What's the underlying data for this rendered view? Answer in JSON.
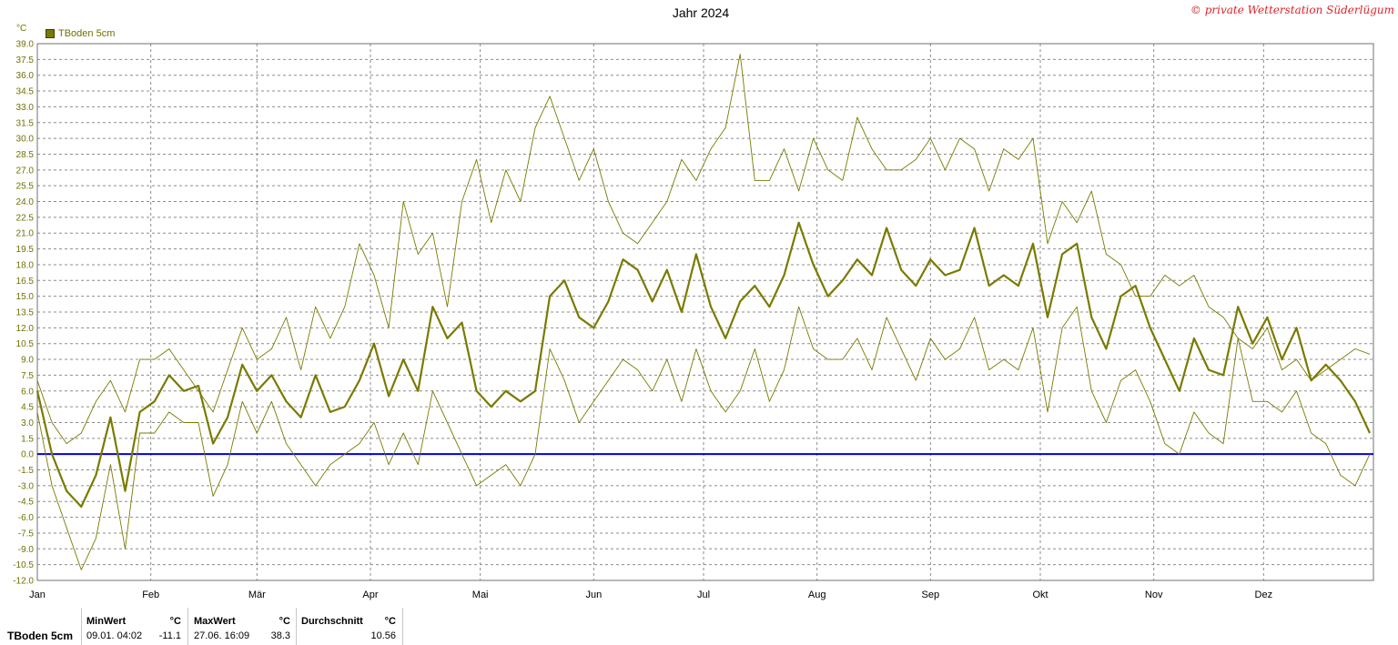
{
  "header": {
    "title": "Jahr 2024",
    "copyright": "© private Wetterstation Süderlügum",
    "unit": "°C"
  },
  "legend": {
    "label": "TBoden  5cm"
  },
  "colors": {
    "series": "#7a7a00",
    "zero_line": "#0000dd",
    "grid": "#8c8c8c"
  },
  "stats": {
    "series_name": "TBoden  5cm",
    "min_header": "MinWert",
    "min_unit": "°C",
    "min_time": "09.01.  04:02",
    "min_value": "-11.1",
    "max_header": "MaxWert",
    "max_unit": "°C",
    "max_time": "27.06.  16:09",
    "max_value": "38.3",
    "avg_header": "Durchschnitt",
    "avg_unit": "°C",
    "avg_value": "10.56"
  },
  "chart_data": {
    "type": "line",
    "title": "Jahr 2024",
    "xlabel": "",
    "ylabel": "°C",
    "ylim": [
      -12,
      39
    ],
    "y_ticks": [
      "39.0",
      "37.5",
      "36.0",
      "34.5",
      "33.0",
      "31.5",
      "30.0",
      "28.5",
      "27.0",
      "25.5",
      "24.0",
      "22.5",
      "21.0",
      "19.5",
      "18.0",
      "16.5",
      "15.0",
      "13.5",
      "12.0",
      "10.5",
      "9.0",
      "7.5",
      "6.0",
      "4.5",
      "3.0",
      "1.5",
      "0.0",
      "-1.5",
      "-3.0",
      "-4.5",
      "-6.0",
      "-7.5",
      "-9.0",
      "-10.5",
      "-12.0"
    ],
    "x_tick_labels": [
      "Jan",
      "Feb",
      "Mär",
      "Apr",
      "Mai",
      "Jun",
      "Jul",
      "Aug",
      "Sep",
      "Okt",
      "Nov",
      "Dez"
    ],
    "x_unit": "day of year 2024 (1 = 1 Jan)",
    "xlim": [
      1,
      366
    ],
    "month_start_days": [
      1,
      32,
      61,
      92,
      122,
      153,
      183,
      214,
      245,
      275,
      306,
      336
    ],
    "grid": true,
    "zero_line": 0,
    "legend_position": "top-left",
    "series": [
      {
        "name": "TBoden  5cm",
        "role": "mean",
        "x": [
          1,
          5,
          9,
          13,
          17,
          21,
          25,
          29,
          33,
          37,
          41,
          45,
          49,
          53,
          57,
          61,
          65,
          69,
          73,
          77,
          81,
          85,
          89,
          93,
          97,
          101,
          105,
          109,
          113,
          117,
          121,
          125,
          129,
          133,
          137,
          141,
          145,
          149,
          153,
          157,
          161,
          165,
          169,
          173,
          177,
          181,
          185,
          189,
          193,
          197,
          201,
          205,
          209,
          213,
          217,
          221,
          225,
          229,
          233,
          237,
          241,
          245,
          249,
          253,
          257,
          261,
          265,
          269,
          273,
          277,
          281,
          285,
          289,
          293,
          297,
          301,
          305,
          309,
          313,
          317,
          321,
          325,
          329,
          333,
          337,
          341,
          345,
          349,
          353,
          357,
          361,
          365
        ],
        "y": [
          6,
          0,
          -3.5,
          -5,
          -2,
          3.5,
          -3.5,
          4,
          5,
          7.5,
          6,
          6.5,
          1,
          3.5,
          8.5,
          6,
          7.5,
          5,
          3.5,
          7.5,
          4,
          4.5,
          7,
          10.5,
          5.5,
          9,
          6,
          14,
          11,
          12.5,
          6,
          4.5,
          6,
          5,
          6,
          15,
          16.5,
          13,
          12,
          14.5,
          18.5,
          17.5,
          14.5,
          17.5,
          13.5,
          19,
          14,
          11,
          14.5,
          16,
          14,
          17,
          22,
          18,
          15,
          16.5,
          18.5,
          17,
          21.5,
          17.5,
          16,
          18.5,
          17,
          17.5,
          21.5,
          16,
          17,
          16,
          20,
          13,
          19,
          20,
          13,
          10,
          15,
          16,
          12,
          9,
          6,
          11,
          8,
          7.5,
          14,
          10.5,
          13,
          9,
          12,
          7,
          8.5,
          7,
          5,
          2
        ]
      },
      {
        "name": "",
        "role": "daily maximum",
        "x": [
          1,
          5,
          9,
          13,
          17,
          21,
          25,
          29,
          33,
          37,
          41,
          45,
          49,
          53,
          57,
          61,
          65,
          69,
          73,
          77,
          81,
          85,
          89,
          93,
          97,
          101,
          105,
          109,
          113,
          117,
          121,
          125,
          129,
          133,
          137,
          141,
          145,
          149,
          153,
          157,
          161,
          165,
          169,
          173,
          177,
          181,
          185,
          189,
          193,
          197,
          201,
          205,
          209,
          213,
          217,
          221,
          225,
          229,
          233,
          237,
          241,
          245,
          249,
          253,
          257,
          261,
          265,
          269,
          273,
          277,
          281,
          285,
          289,
          293,
          297,
          301,
          305,
          309,
          313,
          317,
          321,
          325,
          329,
          333,
          337,
          341,
          345,
          349,
          353,
          357,
          361,
          365
        ],
        "y": [
          7,
          3,
          1,
          2,
          5,
          7,
          4,
          9,
          9,
          10,
          8,
          6,
          4,
          8,
          12,
          9,
          10,
          13,
          8,
          14,
          11,
          14,
          20,
          17,
          12,
          24,
          19,
          21,
          14,
          24,
          28,
          22,
          27,
          24,
          31,
          34,
          30,
          26,
          29,
          24,
          21,
          20,
          22,
          24,
          28,
          26,
          29,
          31,
          38,
          26,
          26,
          29,
          25,
          30,
          27,
          26,
          32,
          29,
          27,
          27,
          28,
          30,
          27,
          30,
          29,
          25,
          29,
          28,
          30,
          20,
          24,
          22,
          25,
          19,
          18,
          15,
          15,
          17,
          16,
          17,
          14,
          13,
          11,
          10,
          12,
          8,
          9,
          7,
          8,
          9,
          10,
          9.5
        ]
      },
      {
        "name": "",
        "role": "daily minimum",
        "x": [
          1,
          5,
          9,
          13,
          17,
          21,
          25,
          29,
          33,
          37,
          41,
          45,
          49,
          53,
          57,
          61,
          65,
          69,
          73,
          77,
          81,
          85,
          89,
          93,
          97,
          101,
          105,
          109,
          113,
          117,
          121,
          125,
          129,
          133,
          137,
          141,
          145,
          149,
          153,
          157,
          161,
          165,
          169,
          173,
          177,
          181,
          185,
          189,
          193,
          197,
          201,
          205,
          209,
          213,
          217,
          221,
          225,
          229,
          233,
          237,
          241,
          245,
          249,
          253,
          257,
          261,
          265,
          269,
          273,
          277,
          281,
          285,
          289,
          293,
          297,
          301,
          305,
          309,
          313,
          317,
          321,
          325,
          329,
          333,
          337,
          341,
          345,
          349,
          353,
          357,
          361,
          365
        ],
        "y": [
          4,
          -3,
          -7,
          -11,
          -8,
          -1,
          -9,
          2,
          2,
          4,
          3,
          3,
          -4,
          -1,
          5,
          2,
          5,
          1,
          -1,
          -3,
          -1,
          0,
          1,
          3,
          -1,
          2,
          -1,
          6,
          3,
          0,
          -3,
          -2,
          -1,
          -3,
          0,
          10,
          7,
          3,
          5,
          7,
          9,
          8,
          6,
          9,
          5,
          10,
          6,
          4,
          6,
          10,
          5,
          8,
          14,
          10,
          9,
          9,
          11,
          8,
          13,
          10,
          7,
          11,
          9,
          10,
          13,
          8,
          9,
          8,
          12,
          4,
          12,
          14,
          6,
          3,
          7,
          8,
          5,
          1,
          0,
          4,
          2,
          1,
          11,
          5,
          5,
          4,
          6,
          2,
          1,
          -2,
          -3,
          0
        ]
      }
    ]
  }
}
